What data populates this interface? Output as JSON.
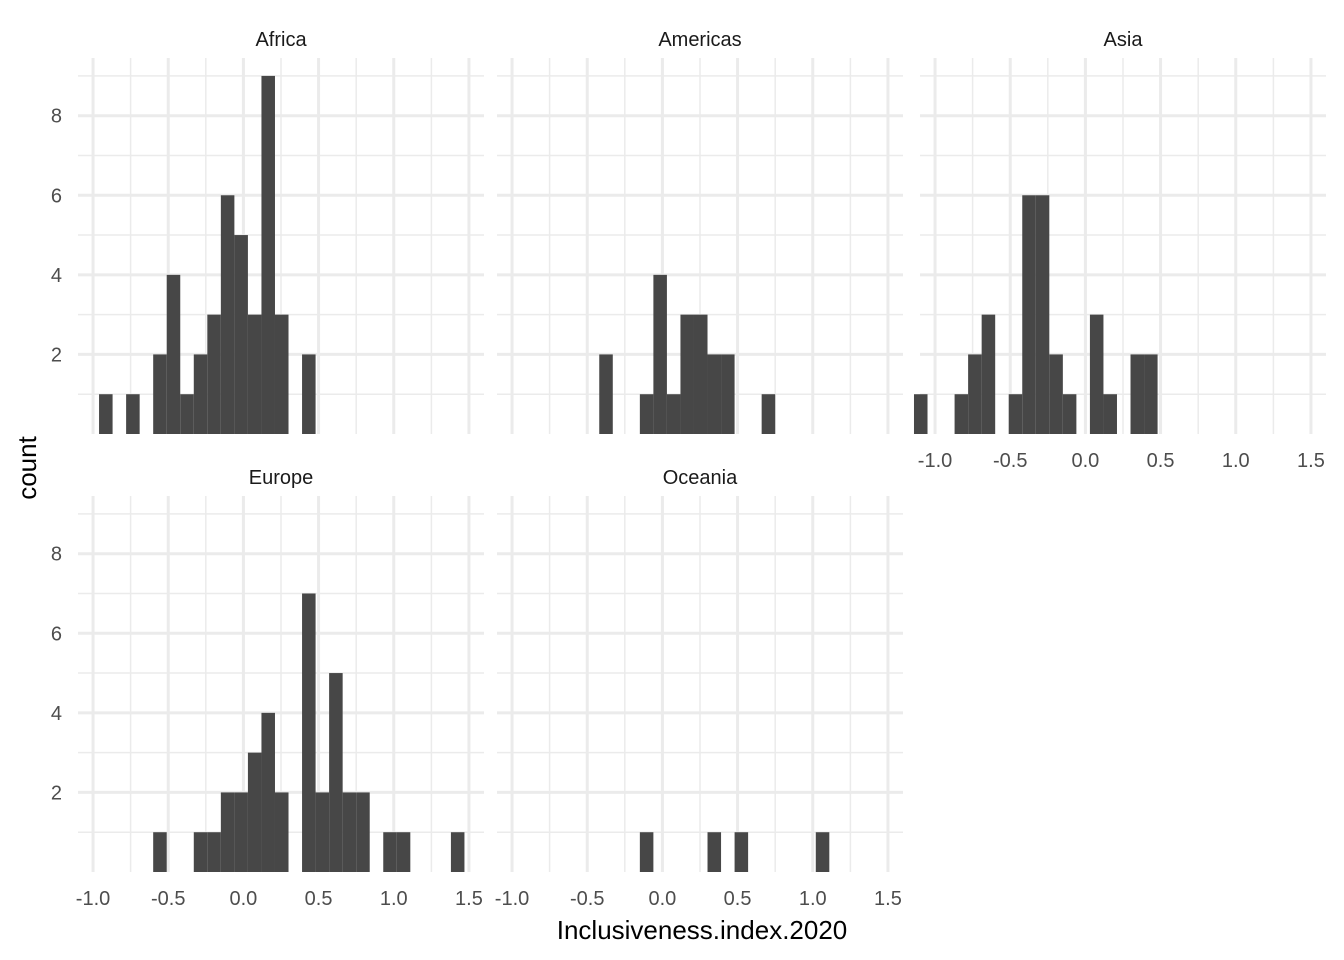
{
  "chart_data": {
    "type": "bar",
    "subtype": "faceted-histogram",
    "xlabel": "Inclusiveness.index.2020",
    "ylabel": "count",
    "xlim": [
      -1.1,
      1.6
    ],
    "ylim": [
      0,
      9.45
    ],
    "binwidth": 0.09,
    "x_ticks": [
      -1.0,
      -0.5,
      0.0,
      0.5,
      1.0,
      1.5
    ],
    "x_tick_labels": [
      "-1.0",
      "-0.5",
      "0.0",
      "0.5",
      "1.0",
      "1.5"
    ],
    "y_ticks": [
      2,
      4,
      6,
      8
    ],
    "y_tick_labels": [
      "2",
      "4",
      "6",
      "8"
    ],
    "grid": true,
    "bar_color": "#474747",
    "grid_color": "#ebebeb",
    "facets": [
      {
        "name": "Africa",
        "show_x_axis": false,
        "show_y_axis": true,
        "bins": [
          {
            "x0": -0.96,
            "x1": -0.87,
            "count": 1
          },
          {
            "x0": -0.78,
            "x1": -0.69,
            "count": 1
          },
          {
            "x0": -0.6,
            "x1": -0.51,
            "count": 2
          },
          {
            "x0": -0.51,
            "x1": -0.42,
            "count": 4
          },
          {
            "x0": -0.42,
            "x1": -0.33,
            "count": 1
          },
          {
            "x0": -0.33,
            "x1": -0.24,
            "count": 2
          },
          {
            "x0": -0.24,
            "x1": -0.15,
            "count": 3
          },
          {
            "x0": -0.15,
            "x1": -0.06,
            "count": 6
          },
          {
            "x0": -0.06,
            "x1": 0.03,
            "count": 5
          },
          {
            "x0": 0.03,
            "x1": 0.12,
            "count": 3
          },
          {
            "x0": 0.12,
            "x1": 0.21,
            "count": 9
          },
          {
            "x0": 0.21,
            "x1": 0.3,
            "count": 3
          },
          {
            "x0": 0.39,
            "x1": 0.48,
            "count": 2
          }
        ]
      },
      {
        "name": "Americas",
        "show_x_axis": false,
        "show_y_axis": false,
        "bins": [
          {
            "x0": -0.42,
            "x1": -0.33,
            "count": 2
          },
          {
            "x0": -0.15,
            "x1": -0.06,
            "count": 1
          },
          {
            "x0": -0.06,
            "x1": 0.03,
            "count": 4
          },
          {
            "x0": 0.03,
            "x1": 0.12,
            "count": 1
          },
          {
            "x0": 0.12,
            "x1": 0.21,
            "count": 3
          },
          {
            "x0": 0.21,
            "x1": 0.3,
            "count": 3
          },
          {
            "x0": 0.3,
            "x1": 0.39,
            "count": 2
          },
          {
            "x0": 0.39,
            "x1": 0.48,
            "count": 2
          },
          {
            "x0": 0.66,
            "x1": 0.75,
            "count": 1
          }
        ]
      },
      {
        "name": "Asia",
        "show_x_axis": true,
        "show_y_axis": false,
        "bins": [
          {
            "x0": -1.14,
            "x1": -1.05,
            "count": 1
          },
          {
            "x0": -0.87,
            "x1": -0.78,
            "count": 1
          },
          {
            "x0": -0.78,
            "x1": -0.69,
            "count": 2
          },
          {
            "x0": -0.69,
            "x1": -0.6,
            "count": 3
          },
          {
            "x0": -0.51,
            "x1": -0.42,
            "count": 1
          },
          {
            "x0": -0.42,
            "x1": -0.33,
            "count": 6
          },
          {
            "x0": -0.33,
            "x1": -0.24,
            "count": 6
          },
          {
            "x0": -0.24,
            "x1": -0.15,
            "count": 2
          },
          {
            "x0": -0.15,
            "x1": -0.06,
            "count": 1
          },
          {
            "x0": 0.03,
            "x1": 0.12,
            "count": 3
          },
          {
            "x0": 0.12,
            "x1": 0.21,
            "count": 1
          },
          {
            "x0": 0.3,
            "x1": 0.39,
            "count": 2
          },
          {
            "x0": 0.39,
            "x1": 0.48,
            "count": 2
          }
        ]
      },
      {
        "name": "Europe",
        "show_x_axis": true,
        "show_y_axis": true,
        "bins": [
          {
            "x0": -0.6,
            "x1": -0.51,
            "count": 1
          },
          {
            "x0": -0.33,
            "x1": -0.24,
            "count": 1
          },
          {
            "x0": -0.24,
            "x1": -0.15,
            "count": 1
          },
          {
            "x0": -0.15,
            "x1": -0.06,
            "count": 2
          },
          {
            "x0": -0.06,
            "x1": 0.03,
            "count": 2
          },
          {
            "x0": 0.03,
            "x1": 0.12,
            "count": 3
          },
          {
            "x0": 0.12,
            "x1": 0.21,
            "count": 4
          },
          {
            "x0": 0.21,
            "x1": 0.3,
            "count": 2
          },
          {
            "x0": 0.39,
            "x1": 0.48,
            "count": 7
          },
          {
            "x0": 0.48,
            "x1": 0.57,
            "count": 2
          },
          {
            "x0": 0.57,
            "x1": 0.66,
            "count": 5
          },
          {
            "x0": 0.66,
            "x1": 0.75,
            "count": 2
          },
          {
            "x0": 0.75,
            "x1": 0.84,
            "count": 2
          },
          {
            "x0": 0.93,
            "x1": 1.02,
            "count": 1
          },
          {
            "x0": 1.02,
            "x1": 1.11,
            "count": 1
          },
          {
            "x0": 1.38,
            "x1": 1.47,
            "count": 1
          }
        ]
      },
      {
        "name": "Oceania",
        "show_x_axis": true,
        "show_y_axis": false,
        "bins": [
          {
            "x0": -0.15,
            "x1": -0.06,
            "count": 1
          },
          {
            "x0": 0.3,
            "x1": 0.39,
            "count": 1
          },
          {
            "x0": 0.48,
            "x1": 0.57,
            "count": 1
          },
          {
            "x0": 1.02,
            "x1": 1.11,
            "count": 1
          }
        ]
      }
    ]
  }
}
